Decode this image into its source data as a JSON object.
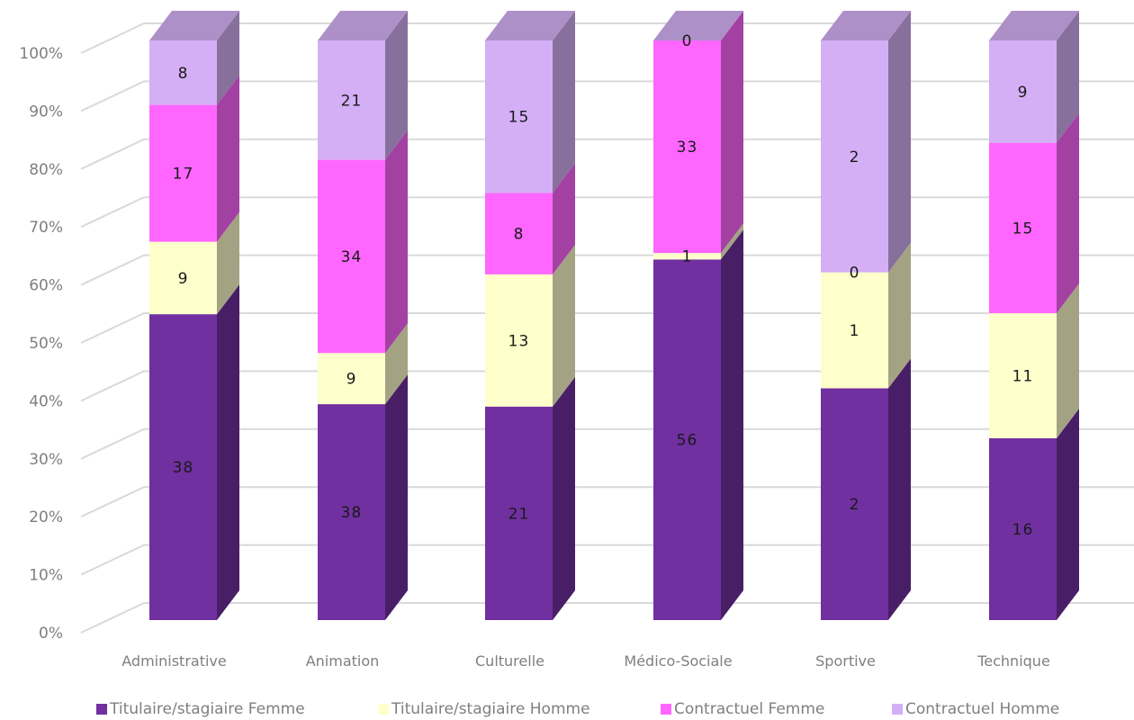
{
  "chart_data": {
    "type": "bar",
    "stacked": "percent",
    "three_d": true,
    "categories": [
      "Administrative",
      "Animation",
      "Culturelle",
      "Médico-Sociale",
      "Sportive",
      "Technique"
    ],
    "series": [
      {
        "name": "Titulaire/stagiaire Femme",
        "color": "#7030a0",
        "values": [
          38,
          38,
          21,
          56,
          2,
          16
        ]
      },
      {
        "name": "Titulaire/stagiaire Homme",
        "color": "#ffffcc",
        "values": [
          9,
          9,
          13,
          1,
          1,
          11
        ]
      },
      {
        "name": "Contractuel Femme",
        "color": "#ff66ff",
        "values": [
          17,
          34,
          8,
          33,
          0,
          15
        ]
      },
      {
        "name": "Contractuel Homme",
        "color": "#d4aff5",
        "values": [
          8,
          21,
          15,
          0,
          2,
          9
        ]
      }
    ],
    "y_ticks": [
      "0%",
      "10%",
      "20%",
      "30%",
      "40%",
      "50%",
      "60%",
      "70%",
      "80%",
      "90%",
      "100%"
    ],
    "ylim": [
      0,
      100
    ],
    "grid": true,
    "legend_position": "bottom"
  }
}
